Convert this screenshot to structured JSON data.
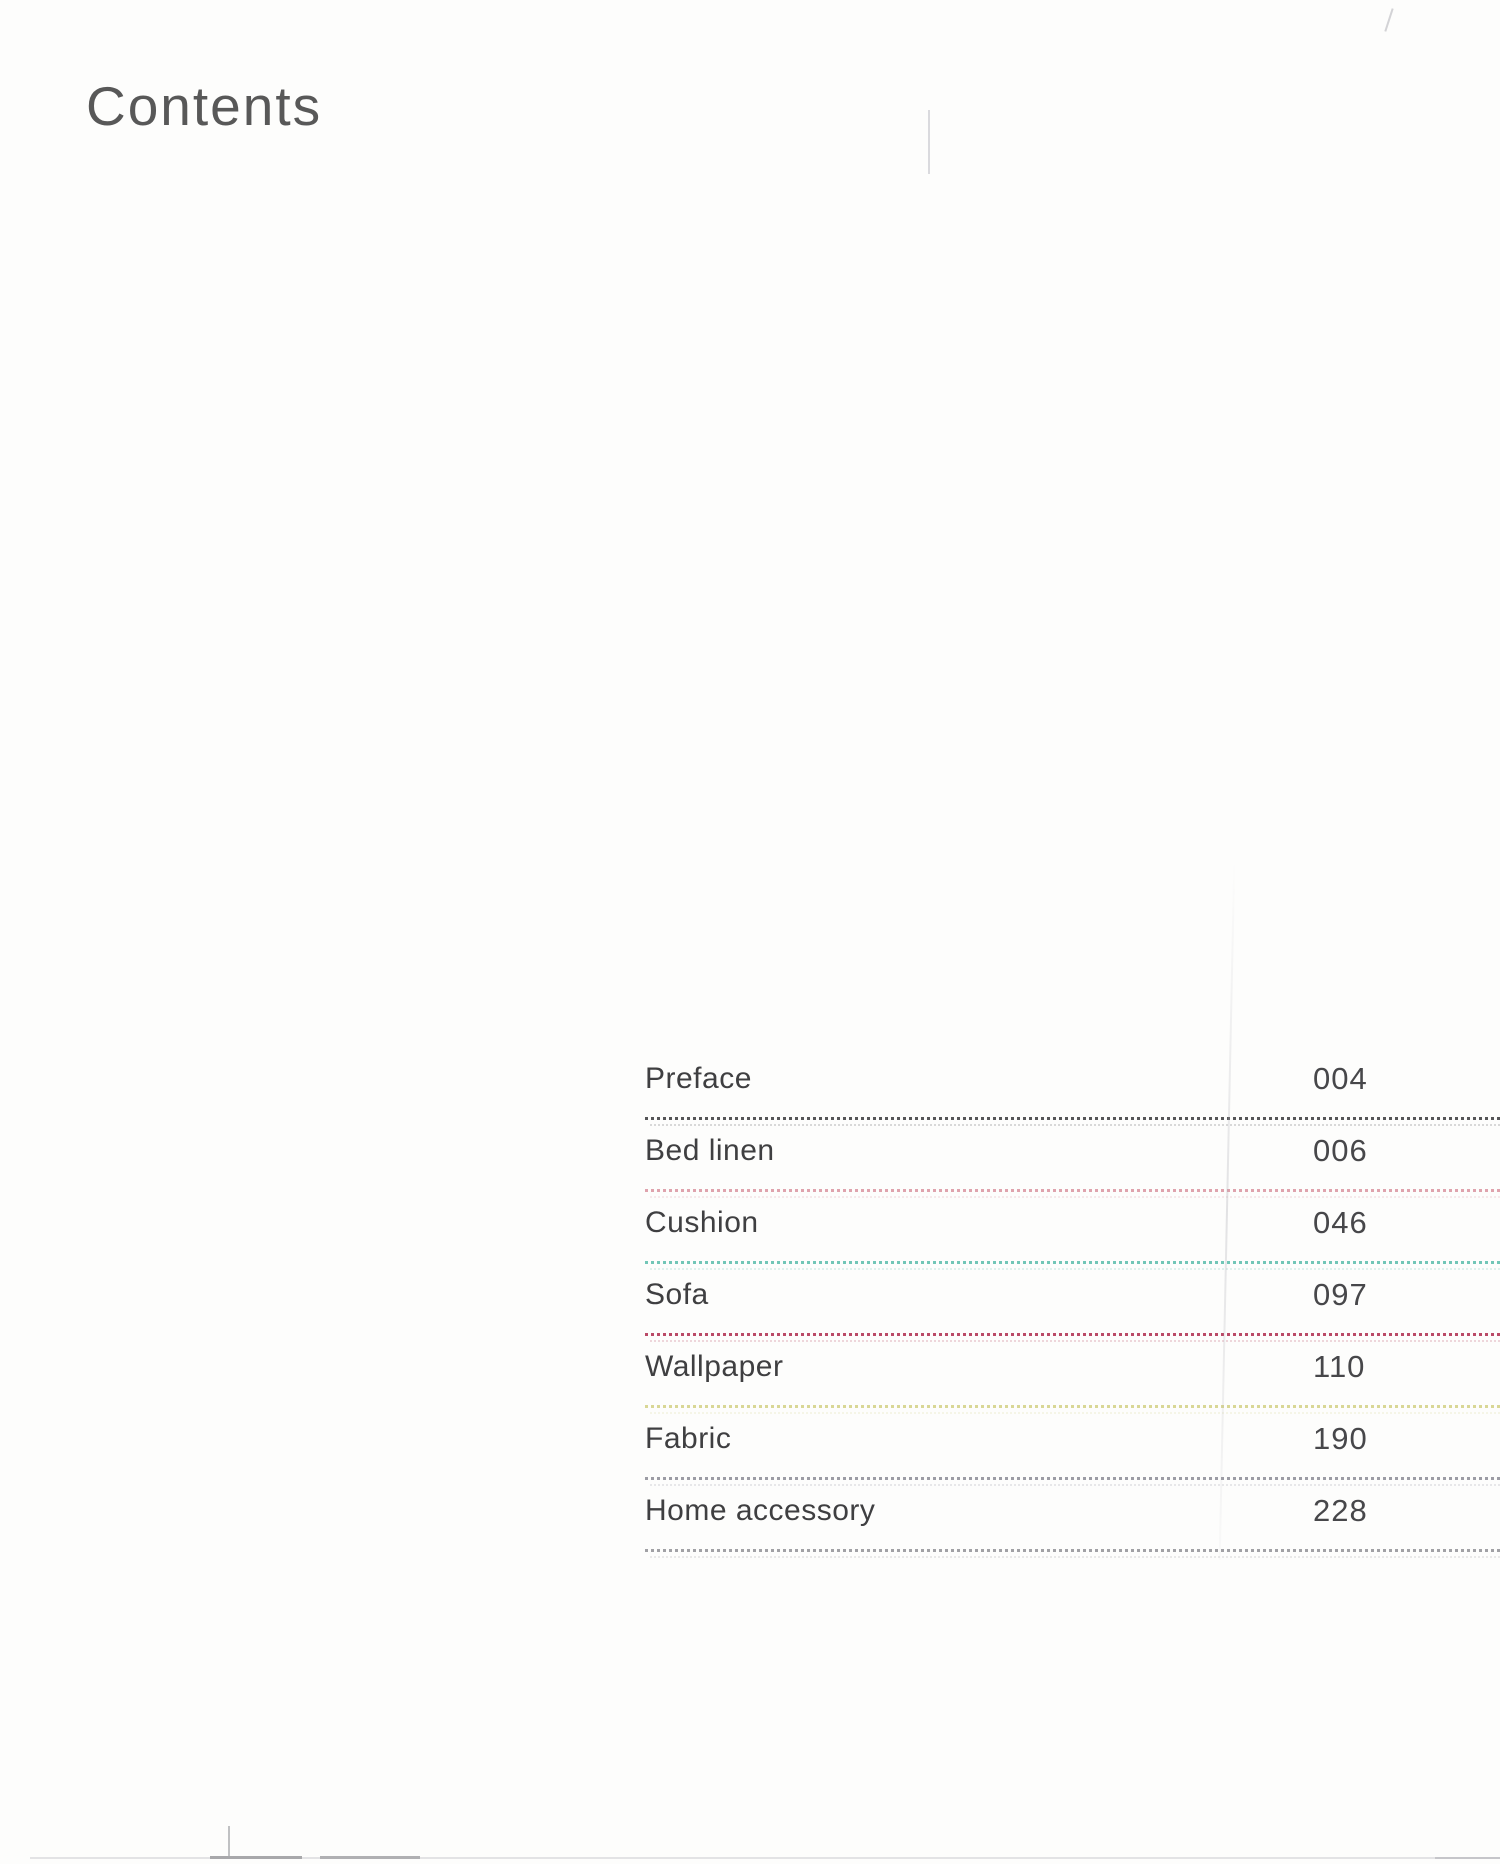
{
  "page": {
    "title": "Contents"
  },
  "toc": {
    "entries": [
      {
        "label": "Preface",
        "page": "004",
        "divider_color": "#3e3e41"
      },
      {
        "label": "Bed linen",
        "page": "006",
        "divider_color": "#dc97a3"
      },
      {
        "label": "Cushion",
        "page": "046",
        "divider_color": "#5fbfae"
      },
      {
        "label": "Sofa",
        "page": "097",
        "divider_color": "#b13253"
      },
      {
        "label": "Wallpaper",
        "page": "110",
        "divider_color": "#d5d287"
      },
      {
        "label": "Fabric",
        "page": "190",
        "divider_color": "#8f8f99"
      },
      {
        "label": "Home accessory",
        "page": "228",
        "divider_color": "#95959a"
      }
    ]
  }
}
